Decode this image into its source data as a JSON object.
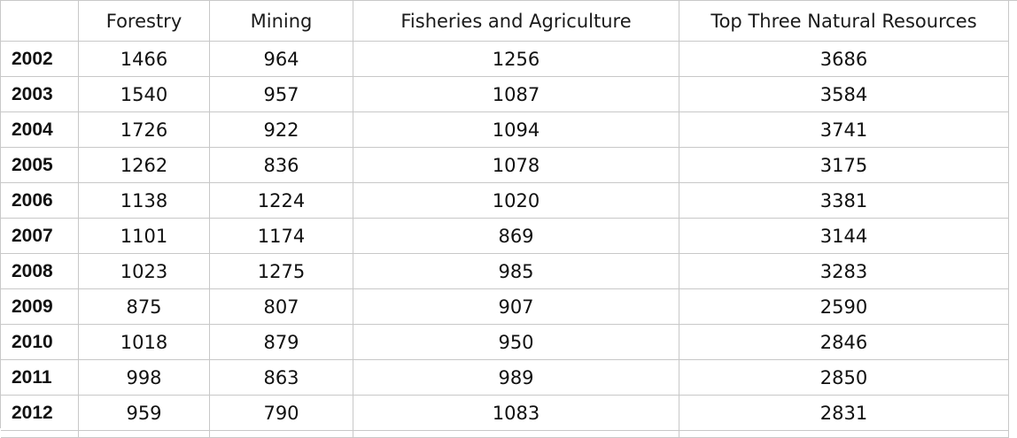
{
  "table": {
    "headers": [
      "",
      "Forestry",
      "Mining",
      "Fisheries and Agriculture",
      "Top Three Natural Resources"
    ],
    "rows": [
      {
        "year": "2002",
        "forestry": "1466",
        "mining": "964",
        "fisheries": "1256",
        "total": "3686"
      },
      {
        "year": "2003",
        "forestry": "1540",
        "mining": "957",
        "fisheries": "1087",
        "total": "3584"
      },
      {
        "year": "2004",
        "forestry": "1726",
        "mining": "922",
        "fisheries": "1094",
        "total": "3741"
      },
      {
        "year": "2005",
        "forestry": "1262",
        "mining": "836",
        "fisheries": "1078",
        "total": "3175"
      },
      {
        "year": "2006",
        "forestry": "1138",
        "mining": "1224",
        "fisheries": "1020",
        "total": "3381"
      },
      {
        "year": "2007",
        "forestry": "1101",
        "mining": "1174",
        "fisheries": "869",
        "total": "3144"
      },
      {
        "year": "2008",
        "forestry": "1023",
        "mining": "1275",
        "fisheries": "985",
        "total": "3283"
      },
      {
        "year": "2009",
        "forestry": "875",
        "mining": "807",
        "fisheries": "907",
        "total": "2590"
      },
      {
        "year": "2010",
        "forestry": "1018",
        "mining": "879",
        "fisheries": "950",
        "total": "2846"
      },
      {
        "year": "2011",
        "forestry": "998",
        "mining": "863",
        "fisheries": "989",
        "total": "2850"
      },
      {
        "year": "2012",
        "forestry": "959",
        "mining": "790",
        "fisheries": "1083",
        "total": "2831"
      }
    ]
  },
  "colors": {
    "gridline": "#c8c8c8",
    "text": "#111111",
    "background": "#ffffff"
  }
}
